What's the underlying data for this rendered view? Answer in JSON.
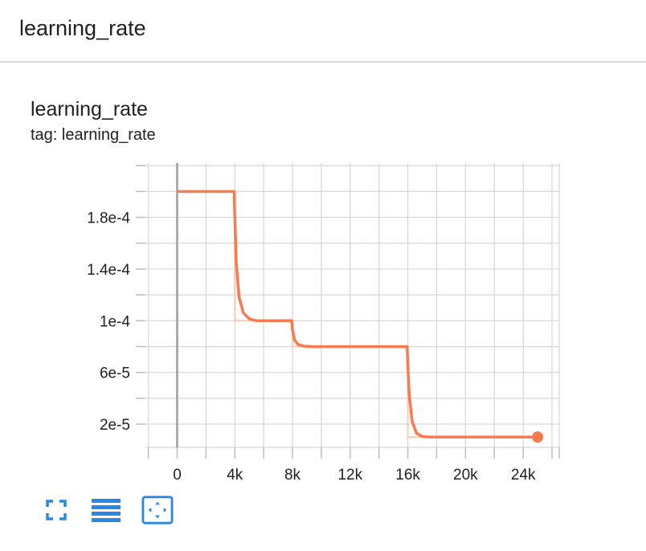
{
  "header": {
    "title": "learning_rate"
  },
  "card": {
    "title": "learning_rate",
    "tag": "tag: learning_rate"
  },
  "colors": {
    "series": "#f97a4f",
    "series_raw": "#fbc7b6",
    "grid": "#d6d6d6",
    "zero_axis": "#9e9e9e",
    "icon": "#2a88e0"
  },
  "toolbar": {
    "icons": [
      "fullscreen-icon",
      "list-icon",
      "fit-domain-icon"
    ]
  },
  "chart_data": {
    "type": "line",
    "title": "",
    "xlabel": "",
    "ylabel": "",
    "xlim": [
      -2200,
      26500
    ],
    "ylim": [
      2e-06,
      0.000222
    ],
    "x_ticks": [
      0,
      4000,
      8000,
      12000,
      16000,
      20000,
      24000
    ],
    "x_tick_labels": [
      "0",
      "4k",
      "8k",
      "12k",
      "16k",
      "20k",
      "24k"
    ],
    "y_ticks": [
      2e-05,
      6e-05,
      0.0001,
      0.00014,
      0.00018
    ],
    "y_tick_labels": [
      "2e-5",
      "6e-5",
      "1e-4",
      "1.4e-4",
      "1.8e-4"
    ],
    "grid": true,
    "series": [
      {
        "x": [
          0,
          3950,
          4000,
          4100,
          4300,
          4600,
          5000,
          5500,
          7950,
          8000,
          8150,
          8400,
          8800,
          9500,
          15950,
          16000,
          16100,
          16300,
          16600,
          17000,
          17500,
          25000
        ],
        "values": [
          0.0002,
          0.0002,
          0.00018,
          0.000145,
          0.000118,
          0.000106,
          0.0001015,
          0.0001,
          0.0001,
          9.3e-05,
          8.5e-05,
          8.15e-05,
          8.03e-05,
          8e-05,
          8e-05,
          6.5e-05,
          4.2e-05,
          2.2e-05,
          1.3e-05,
          1.05e-05,
          1e-05,
          1e-05
        ],
        "last_point": [
          25000,
          1e-05
        ]
      }
    ]
  }
}
